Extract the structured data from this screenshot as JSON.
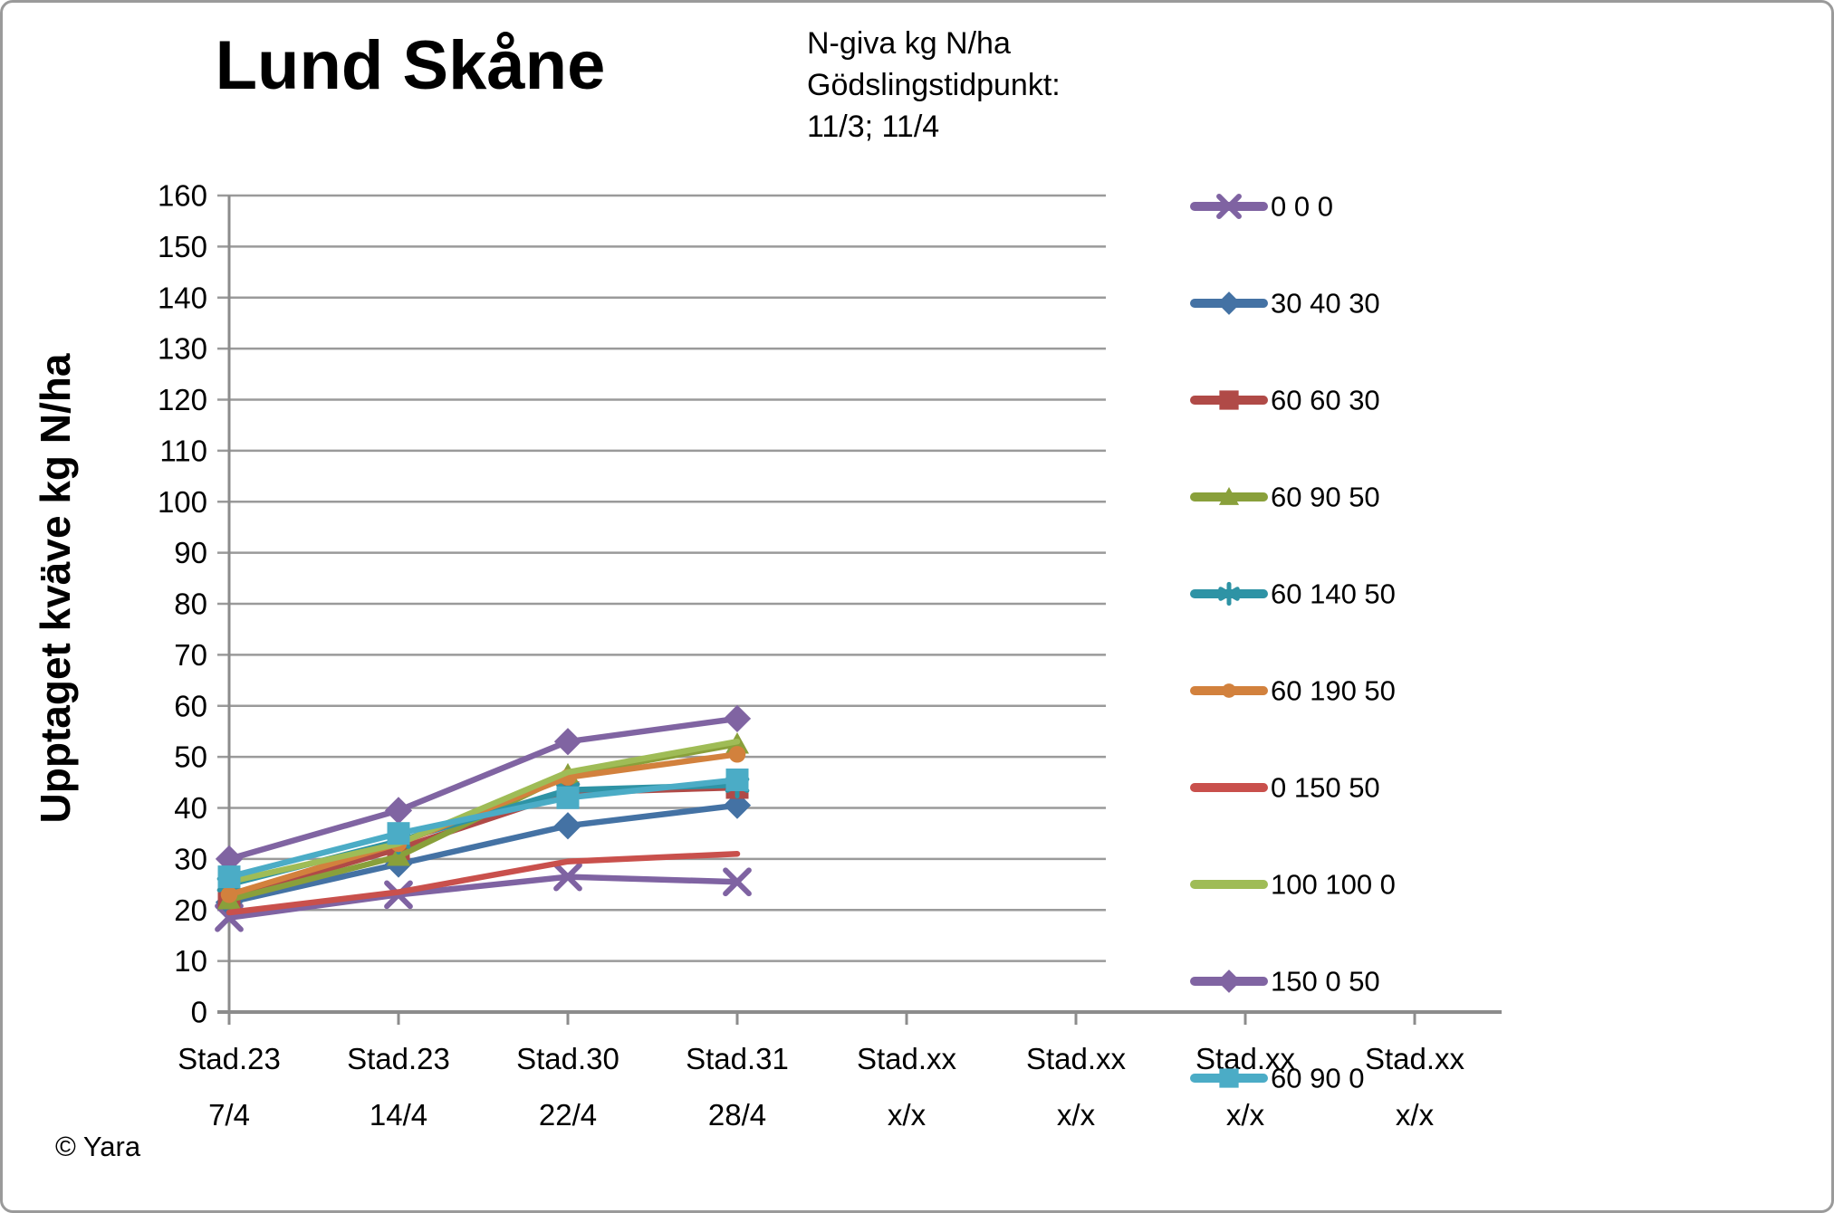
{
  "chart_data": {
    "type": "line",
    "title": "Lund Skåne",
    "annotation": "N-giva kg N/ha\nGödslingstidpunkt:\n11/3; 11/4",
    "ylabel": "Upptaget kväve kg N/ha",
    "xlabel": "",
    "copyright": "© Yara",
    "ylim": [
      0,
      160
    ],
    "ytick_step": 10,
    "grid": true,
    "legend_position": "right",
    "categories": [
      [
        "Stad.23",
        "7/4"
      ],
      [
        "Stad.23",
        "14/4"
      ],
      [
        "Stad.30",
        "22/4"
      ],
      [
        "Stad.31",
        "28/4"
      ],
      [
        "Stad.xx",
        "x/x"
      ],
      [
        "Stad.xx",
        "x/x"
      ],
      [
        "Stad.xx",
        "x/x"
      ],
      [
        "Stad.xx",
        "x/x"
      ]
    ],
    "series": [
      {
        "name": "0 0 0",
        "color": "#7F63A2",
        "marker": "x",
        "values": [
          18.5,
          23,
          26.5,
          25.5
        ]
      },
      {
        "name": "30 40 30",
        "color": "#4472A4",
        "marker": "diamond",
        "values": [
          21.5,
          29,
          36.5,
          40.5
        ]
      },
      {
        "name": "60 60 30",
        "color": "#B04A47",
        "marker": "square",
        "values": [
          22.5,
          32,
          43,
          44
        ]
      },
      {
        "name": "60 90 50",
        "color": "#89A03B",
        "marker": "triangle",
        "values": [
          22,
          30.5,
          46.5,
          52.5
        ]
      },
      {
        "name": "60 140 50",
        "color": "#2E93A5",
        "marker": "asterisk",
        "values": [
          25,
          33.5,
          43.5,
          44.5
        ]
      },
      {
        "name": "60 190 50",
        "color": "#D2813D",
        "marker": "circle",
        "values": [
          23,
          33,
          46,
          50.5
        ]
      },
      {
        "name": "0 150 50",
        "color": "#C9504C",
        "marker": "none",
        "values": [
          19.5,
          23.5,
          29.5,
          31
        ]
      },
      {
        "name": "100 100 0",
        "color": "#9FBC56",
        "marker": "none",
        "values": [
          25.5,
          33,
          47,
          53
        ]
      },
      {
        "name": "150 0 50",
        "color": "#8064A2",
        "marker": "diamond",
        "values": [
          30,
          39.5,
          53,
          57.5
        ]
      },
      {
        "name": "60 90 0",
        "color": "#4BACC6",
        "marker": "square",
        "values": [
          26.5,
          35,
          42,
          45.5
        ]
      }
    ]
  }
}
